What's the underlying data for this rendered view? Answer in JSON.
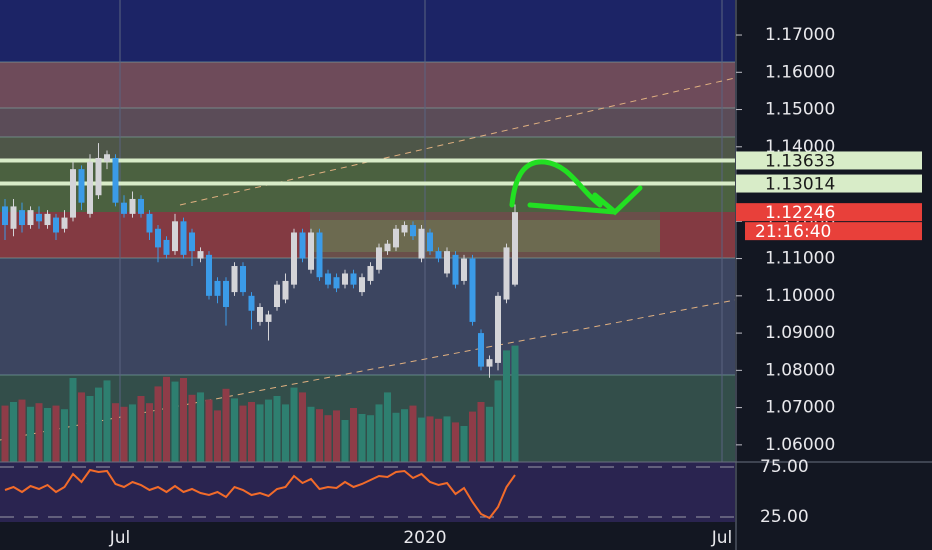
{
  "chart_data": {
    "type": "candlestick",
    "x_labels": [
      "Jul",
      "2020",
      "Jul"
    ],
    "ylim": [
      1.0554,
      1.1794
    ],
    "yticks": [
      {
        "value": 1.06,
        "label": "1.06000"
      },
      {
        "value": 1.07,
        "label": "1.07000"
      },
      {
        "value": 1.08,
        "label": "1.08000"
      },
      {
        "value": 1.09,
        "label": "1.09000"
      },
      {
        "value": 1.1,
        "label": "1.10000"
      },
      {
        "value": 1.11,
        "label": "1.11000"
      },
      {
        "value": 1.12,
        "label": "1.12000"
      },
      {
        "value": 1.13,
        "label": "1.13000"
      },
      {
        "value": 1.14,
        "label": "1.14000"
      },
      {
        "value": 1.15,
        "label": "1.15000"
      },
      {
        "value": 1.16,
        "label": "1.16000"
      },
      {
        "value": 1.17,
        "label": "1.17000"
      }
    ],
    "up_color": "#d4d4d8",
    "down_color": "#3b9be8",
    "open": [
      1.124,
      1.118,
      1.123,
      1.119,
      1.122,
      1.119,
      1.121,
      1.118,
      1.121,
      1.134,
      1.122,
      1.127,
      1.136,
      1.137,
      1.125,
      1.122,
      1.126,
      1.122,
      1.118,
      1.115,
      1.112,
      1.12,
      1.117,
      1.11,
      1.111,
      1.104,
      1.104,
      1.101,
      1.108,
      1.1,
      1.093,
      1.093,
      1.097,
      1.099,
      1.103,
      1.117,
      1.107,
      1.117,
      1.106,
      1.105,
      1.103,
      1.106,
      1.101,
      1.104,
      1.107,
      1.112,
      1.113,
      1.117,
      1.119,
      1.11,
      1.117,
      1.112,
      1.106,
      1.111,
      1.104,
      1.11,
      1.09,
      1.081,
      1.082,
      1.099,
      1.103
    ],
    "high": [
      1.126,
      1.126,
      1.125,
      1.124,
      1.124,
      1.123,
      1.122,
      1.123,
      1.136,
      1.135,
      1.138,
      1.141,
      1.139,
      1.138,
      1.127,
      1.128,
      1.127,
      1.123,
      1.119,
      1.116,
      1.122,
      1.121,
      1.118,
      1.113,
      1.112,
      1.105,
      1.105,
      1.109,
      1.109,
      1.101,
      1.098,
      1.096,
      1.104,
      1.106,
      1.118,
      1.118,
      1.118,
      1.118,
      1.107,
      1.106,
      1.107,
      1.107,
      1.106,
      1.109,
      1.114,
      1.115,
      1.119,
      1.12,
      1.12,
      1.119,
      1.118,
      1.113,
      1.113,
      1.112,
      1.111,
      1.111,
      1.091,
      1.084,
      1.101,
      1.114,
      1.1245
    ],
    "low": [
      1.115,
      1.116,
      1.117,
      1.118,
      1.118,
      1.118,
      1.115,
      1.117,
      1.12,
      1.123,
      1.121,
      1.126,
      1.134,
      1.124,
      1.121,
      1.121,
      1.121,
      1.115,
      1.109,
      1.11,
      1.111,
      1.11,
      1.108,
      1.109,
      1.099,
      1.098,
      1.092,
      1.1,
      1.1,
      1.091,
      1.092,
      1.088,
      1.096,
      1.098,
      1.102,
      1.109,
      1.106,
      1.104,
      1.102,
      1.101,
      1.102,
      1.102,
      1.1,
      1.103,
      1.106,
      1.111,
      1.112,
      1.116,
      1.115,
      1.109,
      1.111,
      1.109,
      1.105,
      1.102,
      1.103,
      1.092,
      1.08,
      1.078,
      1.08,
      1.098,
      1.1025
    ],
    "close": [
      1.119,
      1.124,
      1.119,
      1.123,
      1.12,
      1.122,
      1.117,
      1.121,
      1.134,
      1.125,
      1.136,
      1.137,
      1.138,
      1.125,
      1.122,
      1.126,
      1.122,
      1.117,
      1.113,
      1.111,
      1.12,
      1.111,
      1.112,
      1.112,
      1.1,
      1.1,
      1.097,
      1.108,
      1.101,
      1.096,
      1.097,
      1.095,
      1.103,
      1.104,
      1.117,
      1.11,
      1.117,
      1.105,
      1.103,
      1.102,
      1.106,
      1.103,
      1.105,
      1.108,
      1.113,
      1.114,
      1.118,
      1.119,
      1.116,
      1.118,
      1.112,
      1.11,
      1.112,
      1.103,
      1.11,
      1.093,
      1.081,
      1.083,
      1.1,
      1.113,
      1.12246
    ],
    "volume": {
      "vlim": [
        0,
        100
      ],
      "up_color": "#2e7f70",
      "down_color": "#8e3c48",
      "values": [
        47,
        50,
        52,
        46,
        49,
        45,
        47,
        44,
        70,
        58,
        55,
        62,
        68,
        49,
        46,
        48,
        55,
        49,
        63,
        71,
        67,
        70,
        56,
        58,
        52,
        43,
        61,
        53,
        47,
        50,
        48,
        52,
        55,
        48,
        62,
        58,
        46,
        44,
        39,
        43,
        35,
        45,
        40,
        39,
        48,
        58,
        41,
        44,
        47,
        37,
        38,
        36,
        38,
        33,
        30,
        42,
        50,
        46,
        68,
        93,
        97
      ]
    },
    "rsi": {
      "ylim": [
        20,
        80
      ],
      "color": "#f26b2a",
      "yticks": [
        {
          "value": 75,
          "label": "75.00"
        },
        {
          "value": 25,
          "label": "25.00"
        }
      ],
      "values": [
        52,
        55,
        50,
        56,
        53,
        57,
        50,
        55,
        68,
        60,
        72,
        70,
        71,
        58,
        55,
        60,
        57,
        52,
        55,
        50,
        56,
        50,
        53,
        49,
        47,
        50,
        45,
        55,
        52,
        47,
        49,
        46,
        53,
        55,
        66,
        59,
        63,
        53,
        55,
        54,
        60,
        55,
        58,
        62,
        66,
        65,
        70,
        71,
        64,
        68,
        60,
        57,
        59,
        48,
        54,
        40,
        28,
        24,
        35,
        55,
        67
      ]
    },
    "price_lines": [
      {
        "value": 1.13633,
        "color": "#d8ecc8"
      },
      {
        "value": 1.13014,
        "color": "#d8ecc8"
      }
    ],
    "last_price": {
      "value": 1.12246,
      "color": "#e8403a"
    },
    "countdown": "21:16:40"
  }
}
